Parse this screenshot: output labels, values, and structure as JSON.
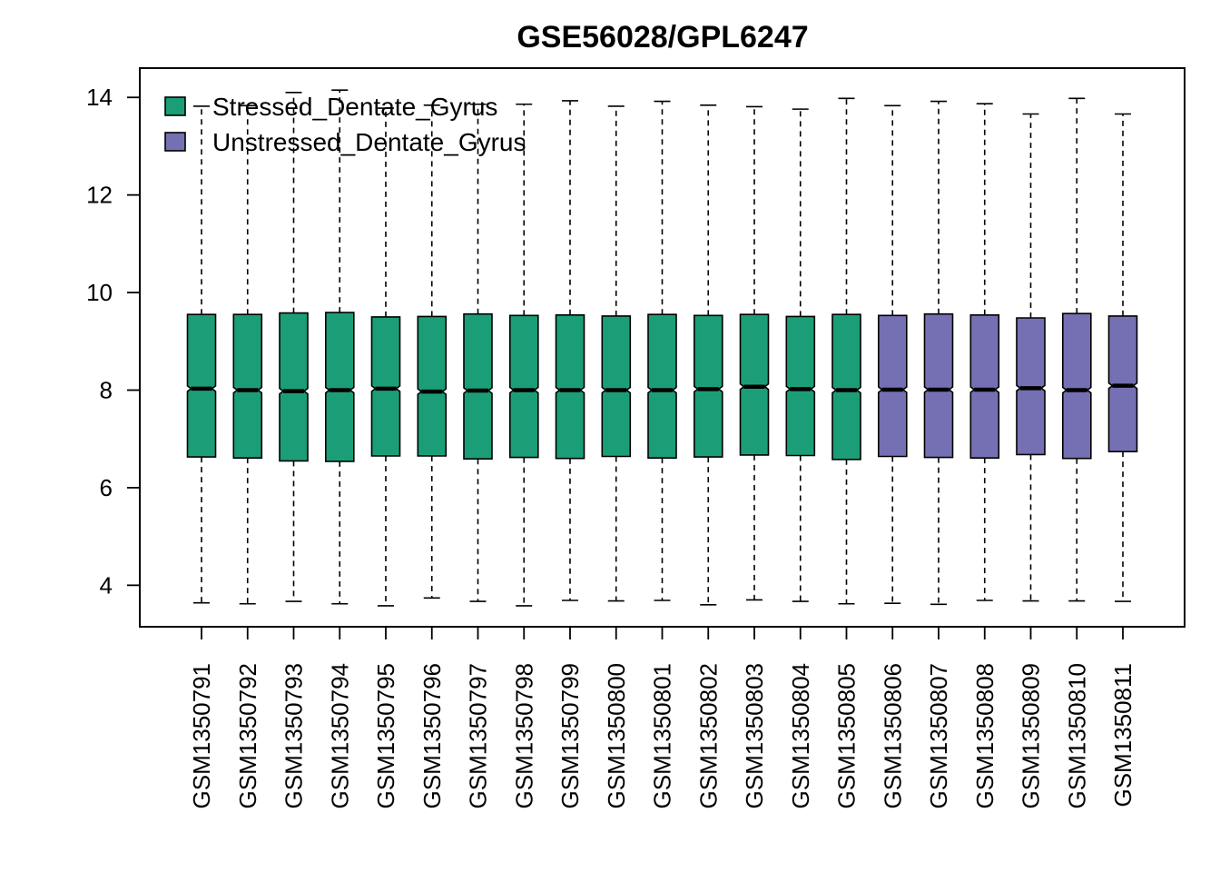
{
  "chart_data": {
    "type": "boxplot",
    "title": "GSE56028/GPL6247",
    "xlabel": "",
    "ylabel": "",
    "ylim": [
      3.15,
      14.6
    ],
    "yticks": [
      4,
      6,
      8,
      10,
      12,
      14
    ],
    "grid": false,
    "legend_position": "top-left",
    "legend": [
      {
        "name": "Stressed_Dentate_Gyrus",
        "color": "#1B9E77"
      },
      {
        "name": "Unstressed_Dentate_Gyrus",
        "color": "#7570B3"
      }
    ],
    "categories": [
      "GSM1350791",
      "GSM1350792",
      "GSM1350793",
      "GSM1350794",
      "GSM1350795",
      "GSM1350796",
      "GSM1350797",
      "GSM1350798",
      "GSM1350799",
      "GSM1350800",
      "GSM1350801",
      "GSM1350802",
      "GSM1350803",
      "GSM1350804",
      "GSM1350805",
      "GSM1350806",
      "GSM1350807",
      "GSM1350808",
      "GSM1350809",
      "GSM1350810",
      "GSM1350811"
    ],
    "boxes": [
      {
        "min": 3.64,
        "q1": 6.63,
        "median": 8.03,
        "q3": 9.55,
        "max": 13.82,
        "group": 0
      },
      {
        "min": 3.62,
        "q1": 6.61,
        "median": 8.0,
        "q3": 9.55,
        "max": 13.83,
        "group": 0
      },
      {
        "min": 3.67,
        "q1": 6.55,
        "median": 7.98,
        "q3": 9.58,
        "max": 14.1,
        "group": 0
      },
      {
        "min": 3.62,
        "q1": 6.54,
        "median": 8.0,
        "q3": 9.59,
        "max": 14.15,
        "group": 0
      },
      {
        "min": 3.58,
        "q1": 6.65,
        "median": 8.03,
        "q3": 9.5,
        "max": 13.78,
        "group": 0
      },
      {
        "min": 3.74,
        "q1": 6.65,
        "median": 7.97,
        "q3": 9.51,
        "max": 13.84,
        "group": 0
      },
      {
        "min": 3.67,
        "q1": 6.59,
        "median": 7.99,
        "q3": 9.56,
        "max": 13.86,
        "group": 0
      },
      {
        "min": 3.58,
        "q1": 6.62,
        "median": 8.0,
        "q3": 9.53,
        "max": 13.86,
        "group": 0
      },
      {
        "min": 3.69,
        "q1": 6.6,
        "median": 8.0,
        "q3": 9.54,
        "max": 13.93,
        "group": 0
      },
      {
        "min": 3.68,
        "q1": 6.64,
        "median": 8.0,
        "q3": 9.52,
        "max": 13.82,
        "group": 0
      },
      {
        "min": 3.69,
        "q1": 6.61,
        "median": 8.0,
        "q3": 9.55,
        "max": 13.92,
        "group": 0
      },
      {
        "min": 3.6,
        "q1": 6.63,
        "median": 8.02,
        "q3": 9.53,
        "max": 13.84,
        "group": 0
      },
      {
        "min": 3.7,
        "q1": 6.67,
        "median": 8.07,
        "q3": 9.55,
        "max": 13.81,
        "group": 0
      },
      {
        "min": 3.67,
        "q1": 6.66,
        "median": 8.02,
        "q3": 9.51,
        "max": 13.76,
        "group": 0
      },
      {
        "min": 3.62,
        "q1": 6.58,
        "median": 8.0,
        "q3": 9.55,
        "max": 13.98,
        "group": 0
      },
      {
        "min": 3.63,
        "q1": 6.64,
        "median": 8.01,
        "q3": 9.53,
        "max": 13.83,
        "group": 1
      },
      {
        "min": 3.61,
        "q1": 6.62,
        "median": 8.01,
        "q3": 9.56,
        "max": 13.92,
        "group": 1
      },
      {
        "min": 3.69,
        "q1": 6.61,
        "median": 8.01,
        "q3": 9.54,
        "max": 13.87,
        "group": 1
      },
      {
        "min": 3.68,
        "q1": 6.68,
        "median": 8.04,
        "q3": 9.48,
        "max": 13.66,
        "group": 1
      },
      {
        "min": 3.68,
        "q1": 6.6,
        "median": 8.0,
        "q3": 9.57,
        "max": 13.98,
        "group": 1
      },
      {
        "min": 3.67,
        "q1": 6.74,
        "median": 8.09,
        "q3": 9.52,
        "max": 13.66,
        "group": 1
      }
    ]
  }
}
